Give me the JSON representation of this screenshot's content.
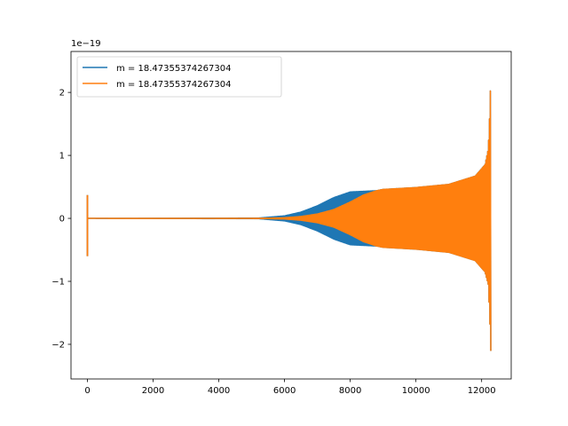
{
  "chart_data": {
    "type": "line",
    "title": "",
    "xlabel": "",
    "ylabel": "",
    "offset_text": "1e−19",
    "xlim": [
      -500,
      12900
    ],
    "ylim": [
      -2.55,
      2.65
    ],
    "x_ticks": [
      0,
      2000,
      4000,
      6000,
      8000,
      10000,
      12000
    ],
    "x_tick_labels": [
      "0",
      "2000",
      "4000",
      "6000",
      "8000",
      "10000",
      "12000"
    ],
    "y_ticks": [
      -2,
      -1,
      0,
      1,
      2
    ],
    "y_tick_labels": [
      "−2",
      "−1",
      "0",
      "1",
      "2"
    ],
    "grid": false,
    "legend_position": "upper-left",
    "series": [
      {
        "name": "m = 18.47355374267304",
        "color": "#1f77b4",
        "style": "dense-oscillation",
        "initial_spike": {
          "x": 0,
          "ymax": 0.37,
          "ymin": -0.6
        },
        "envelope": {
          "x": [
            0,
            5200,
            6000,
            6500,
            7000,
            7500,
            8000,
            8400,
            8800,
            9000,
            10000,
            11000,
            11800,
            12100,
            12200,
            12240,
            12270,
            12290,
            12300
          ],
          "upper": [
            0,
            0.005,
            0.04,
            0.1,
            0.2,
            0.33,
            0.42,
            0.43,
            0.44,
            0.46,
            0.49,
            0.54,
            0.67,
            0.85,
            1.1,
            1.6,
            2.1,
            2.55,
            0.0
          ],
          "lower": [
            0,
            -0.005,
            -0.04,
            -0.1,
            -0.2,
            -0.33,
            -0.42,
            -0.43,
            -0.44,
            -0.46,
            -0.49,
            -0.54,
            -0.67,
            -0.85,
            -1.05,
            -1.5,
            -1.95,
            -2.3,
            0.0
          ]
        }
      },
      {
        "name": "m = 18.47355374267304",
        "color": "#ff7f0e",
        "style": "dense-oscillation",
        "initial_spike": {
          "x": 0,
          "ymax": 0.37,
          "ymin": -0.6
        },
        "envelope": {
          "x": [
            0,
            5200,
            6000,
            6500,
            7000,
            7500,
            8000,
            8400,
            8800,
            9000,
            10000,
            11000,
            11800,
            12100,
            12200,
            12240,
            12270,
            12290,
            12300
          ],
          "upper": [
            0,
            0.002,
            0.01,
            0.03,
            0.07,
            0.14,
            0.26,
            0.37,
            0.44,
            0.46,
            0.49,
            0.54,
            0.67,
            0.85,
            1.1,
            1.6,
            2.1,
            2.55,
            0.0
          ],
          "lower": [
            0,
            -0.002,
            -0.01,
            -0.03,
            -0.07,
            -0.14,
            -0.26,
            -0.37,
            -0.44,
            -0.46,
            -0.49,
            -0.54,
            -0.67,
            -0.85,
            -1.05,
            -1.5,
            -1.95,
            -2.3,
            0.0
          ]
        }
      }
    ]
  }
}
